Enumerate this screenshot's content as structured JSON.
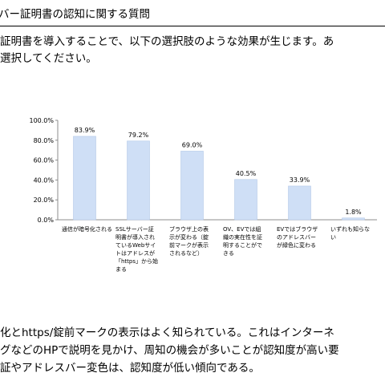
{
  "header": {
    "title": "バー証明書の認知に関する質問"
  },
  "intro": {
    "line1": "証明書を導入することで、以下の選択肢のような効果が生じます。あ",
    "line2": "選択してください。"
  },
  "chart_data": {
    "type": "bar",
    "ylim": [
      0,
      100
    ],
    "yticks": [
      "0.0%",
      "20.0%",
      "40.0%",
      "60.0%",
      "80.0%",
      "100.0%"
    ],
    "grid": false,
    "bar_color": "#cfdff6",
    "bar_stroke": "#b4c9e8",
    "categories": [
      [
        "通信が暗号化される"
      ],
      [
        "SSLサーバー証",
        "明書が導入され",
        "ているWebサイ",
        "トはアドレスが",
        "「https」から始",
        "まる"
      ],
      [
        "ブラウザ上の表",
        "示が変わる（錠",
        "前マークが表示",
        "されるなど）"
      ],
      [
        "OV、EVでは組",
        "織の実在性を証",
        "明することがで",
        "きる"
      ],
      [
        "EVではブラウザ",
        "のアドレスバー",
        "が緑色に変わる"
      ],
      [
        "いずれも知らな",
        "い"
      ]
    ],
    "values": [
      83.9,
      79.2,
      69.0,
      40.5,
      33.9,
      1.8
    ],
    "value_labels": [
      "83.9%",
      "79.2%",
      "69.0%",
      "40.5%",
      "33.9%",
      "1.8%"
    ]
  },
  "conclusion": {
    "line1": "化とhttps/錠前マークの表示はよく知られている。これはインターネ",
    "line2": "グなどのHPで説明を見かけ、周知の機会が多いことが認知度が高い要",
    "line3": "証やアドレスバー変色は、認知度が低い傾向である。"
  }
}
